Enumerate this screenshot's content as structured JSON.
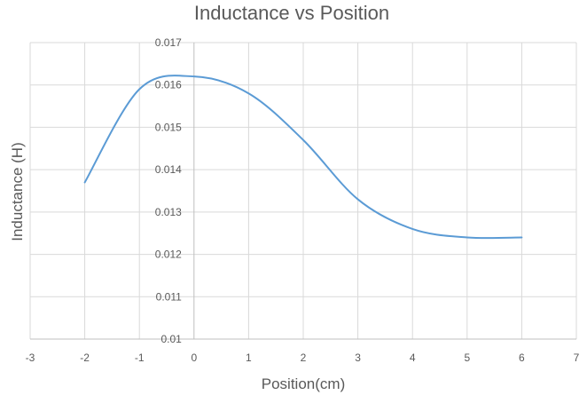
{
  "chart_data": {
    "type": "line",
    "title": "Inductance vs Position",
    "xlabel": "Position(cm)",
    "ylabel": "Inductance (H)",
    "xlim": [
      -3,
      7
    ],
    "ylim": [
      0.01,
      0.017
    ],
    "x_ticks": [
      "-3",
      "-2",
      "-1",
      "0",
      "1",
      "2",
      "3",
      "4",
      "5",
      "6",
      "7"
    ],
    "y_ticks": [
      "0.01",
      "0.011",
      "0.012",
      "0.013",
      "0.014",
      "0.015",
      "0.016",
      "0.017"
    ],
    "grid": true,
    "smooth": true,
    "legend": "none",
    "series": [
      {
        "color": "#5b9bd5",
        "x": [
          -2,
          -1,
          0,
          1,
          2,
          3,
          4,
          5,
          6
        ],
        "y": [
          0.0137,
          0.0159,
          0.0162,
          0.0158,
          0.0147,
          0.0133,
          0.0126,
          0.0124,
          0.0124
        ]
      }
    ]
  }
}
